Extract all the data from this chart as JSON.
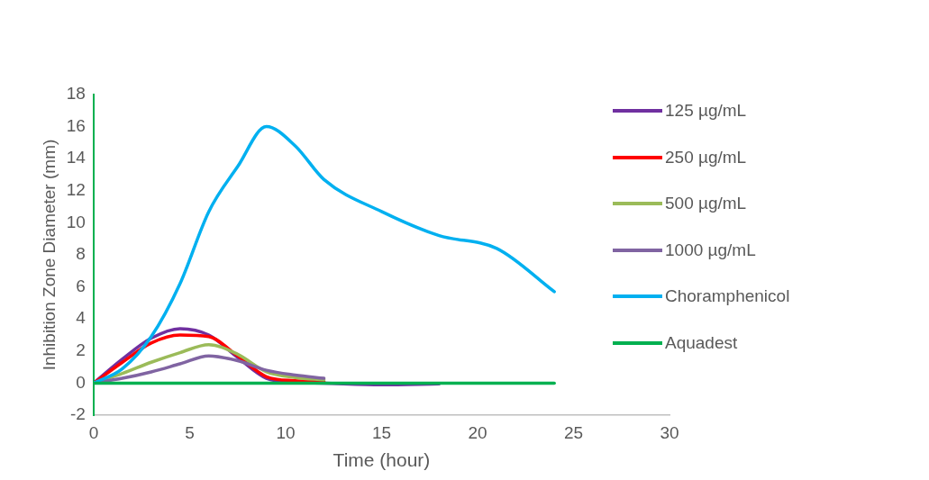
{
  "chart_data": {
    "type": "line",
    "xlabel": "Time (hour)",
    "ylabel": "Inhibition Zone Diameter (mm)",
    "x": [
      0,
      1.5,
      3,
      4.5,
      6,
      7.5,
      9,
      10.5,
      12,
      15,
      18,
      21,
      24
    ],
    "series": [
      {
        "name": "125 µg/mL",
        "color": "#7030a0",
        "values": [
          0,
          1.5,
          2.8,
          3.4,
          3.0,
          1.6,
          0.3,
          0.05,
          0,
          -0.1,
          -0.05,
          null,
          null
        ]
      },
      {
        "name": "250 µg/mL",
        "color": "#ff0000",
        "values": [
          0,
          1.3,
          2.5,
          3.0,
          2.9,
          1.7,
          0.4,
          0.15,
          0.1,
          null,
          null,
          null,
          null
        ]
      },
      {
        "name": "500 µg/mL",
        "color": "#9bbb59",
        "values": [
          0,
          0.6,
          1.3,
          1.9,
          2.4,
          1.8,
          0.7,
          0.35,
          0.2,
          null,
          null,
          null,
          null
        ]
      },
      {
        "name": "1000 µg/mL",
        "color": "#8064a2",
        "values": [
          0,
          0.3,
          0.7,
          1.2,
          1.7,
          1.4,
          0.8,
          0.5,
          0.3,
          null,
          null,
          null,
          null
        ]
      },
      {
        "name": "Choramphenicol",
        "color": "#00b0f0",
        "values": [
          0,
          0.9,
          2.9,
          6.2,
          10.7,
          13.5,
          16.0,
          14.8,
          12.7,
          10.7,
          9.2,
          8.4,
          5.7
        ]
      },
      {
        "name": "Aquadest",
        "color": "#00b050",
        "values": [
          0,
          0,
          0,
          0,
          0,
          0,
          0,
          0,
          0,
          0,
          0,
          0,
          0
        ]
      }
    ],
    "xlim": [
      0,
      30
    ],
    "xticks": [
      0,
      5,
      10,
      15,
      20,
      25,
      30
    ],
    "ylim": [
      -2,
      18
    ],
    "yticks": [
      -2,
      0,
      2,
      4,
      6,
      8,
      10,
      12,
      14,
      16,
      18
    ],
    "grid": false,
    "legend": "right",
    "marker": "none",
    "line_style": "solid"
  }
}
